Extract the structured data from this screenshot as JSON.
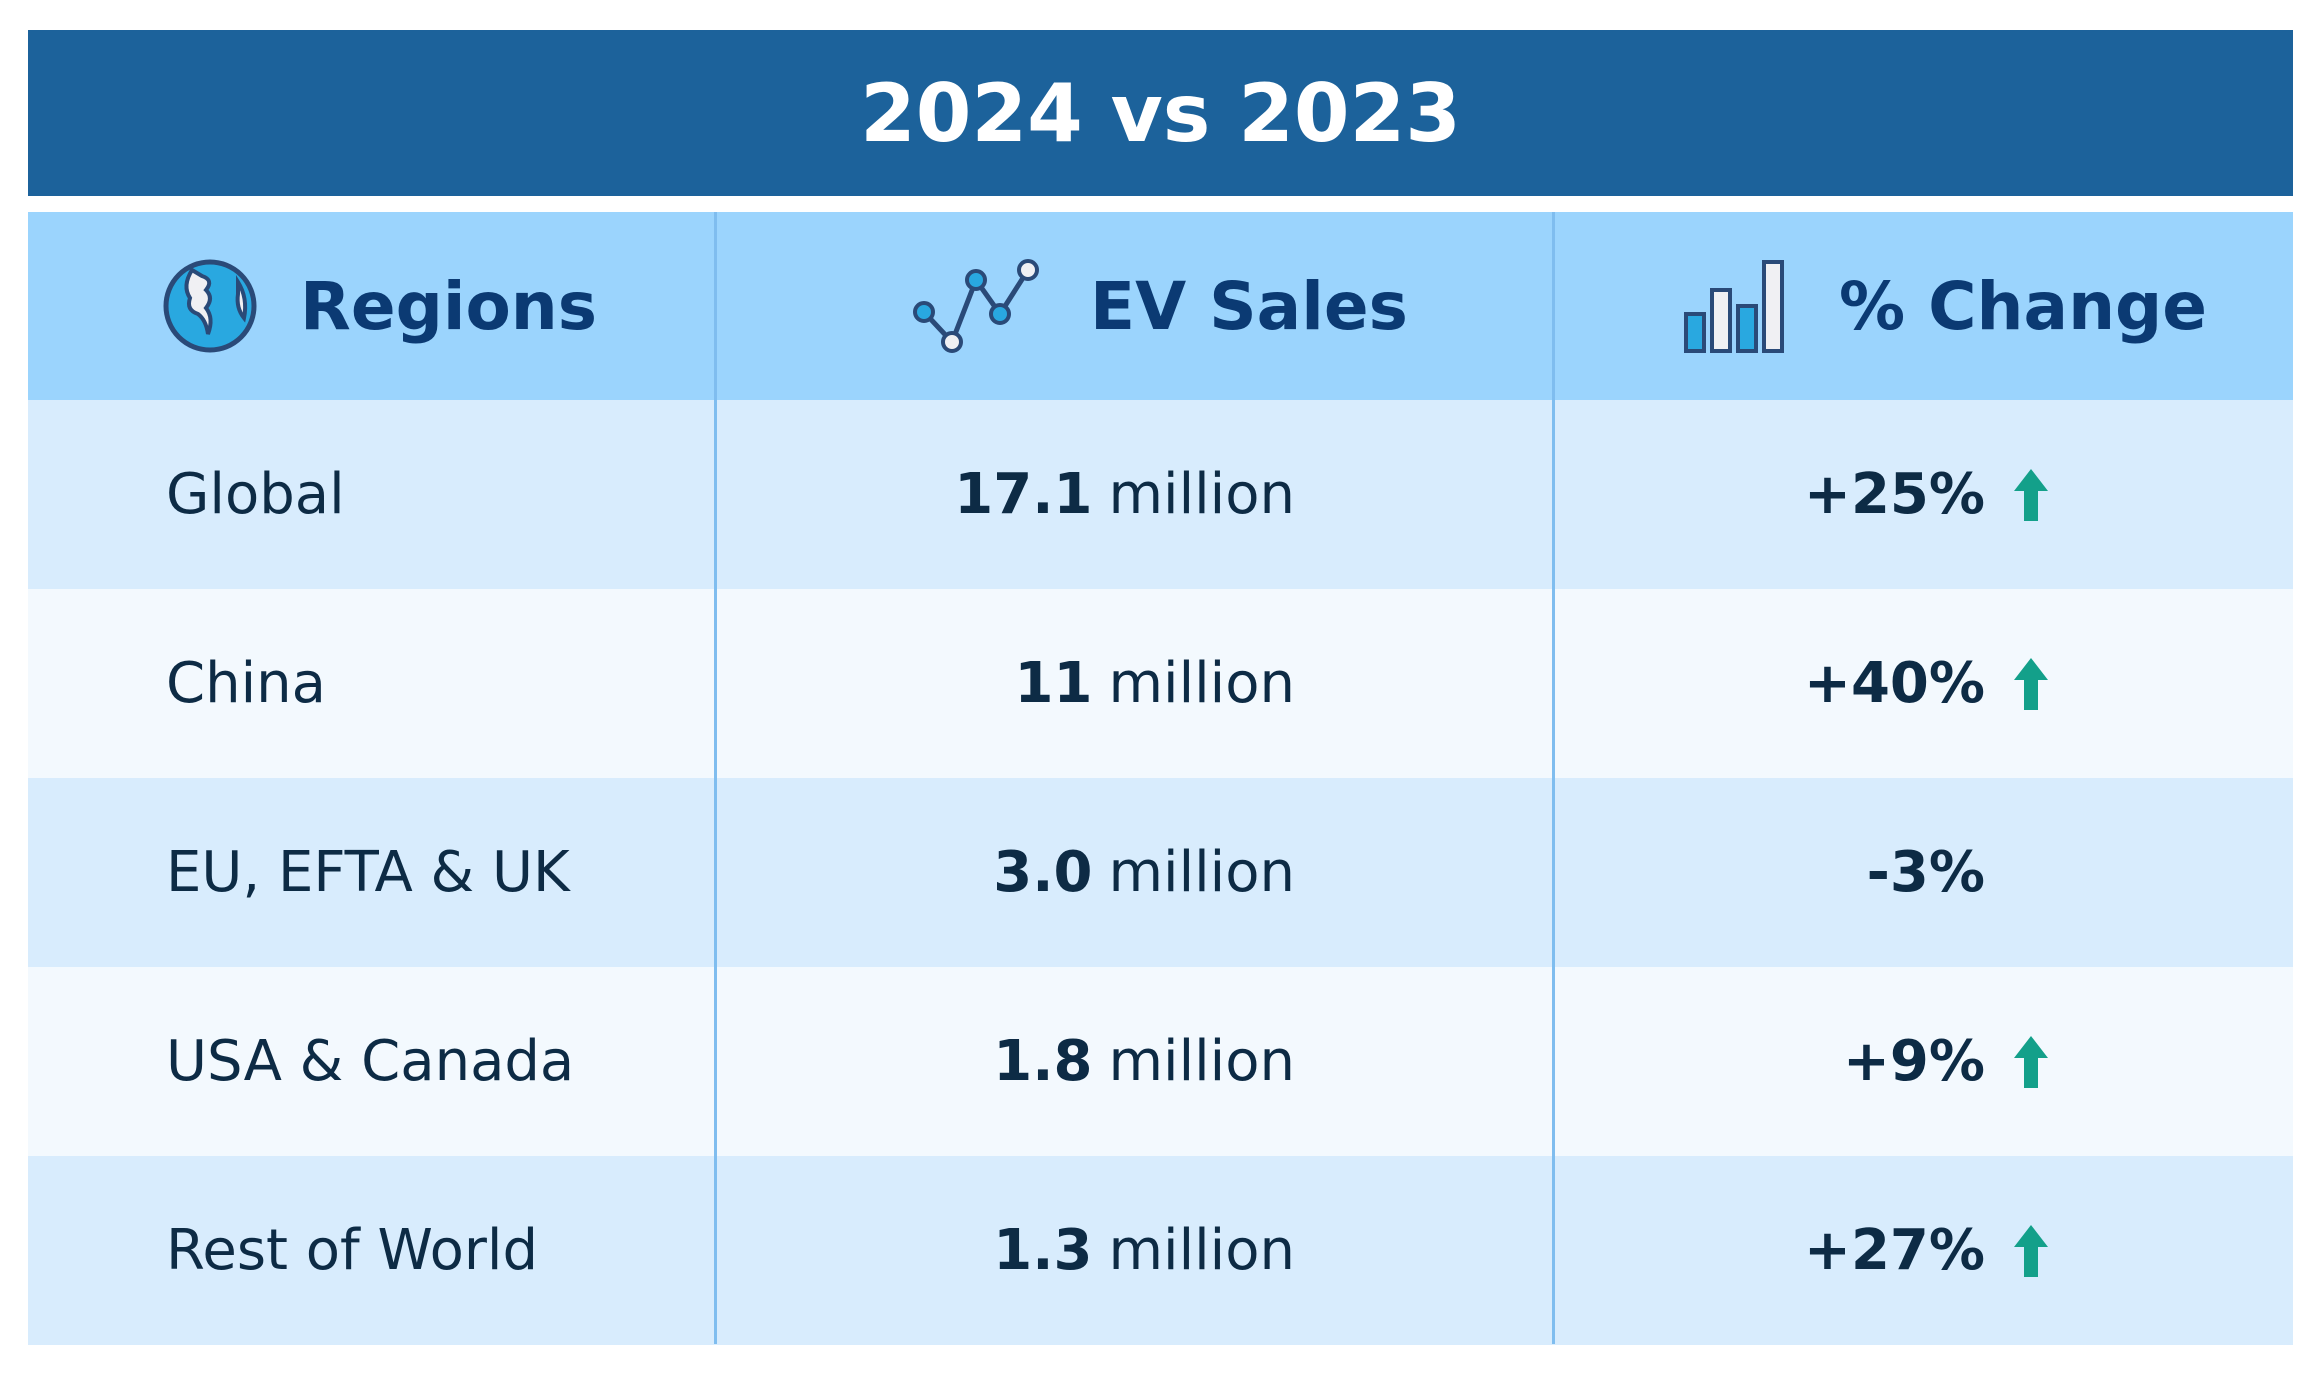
{
  "title": "2024 vs 2023",
  "headers": {
    "regions": {
      "label": "Regions",
      "icon": "globe-icon"
    },
    "sales": {
      "label": "EV Sales",
      "icon": "line-chart-icon"
    },
    "change": {
      "label": "% Change",
      "icon": "bar-chart-icon"
    }
  },
  "rows": [
    {
      "region": "Global",
      "sales_value": "17.1",
      "sales_unit": "million",
      "change": "+25%",
      "trend": "up"
    },
    {
      "region": "China",
      "sales_value": "11",
      "sales_unit": "million",
      "change": "+40%",
      "trend": "up"
    },
    {
      "region": "EU, EFTA & UK",
      "sales_value": "3.0",
      "sales_unit": "million",
      "change": "-3%",
      "trend": "none"
    },
    {
      "region": "USA & Canada",
      "sales_value": "1.8",
      "sales_unit": "million",
      "change": "+9%",
      "trend": "up"
    },
    {
      "region": "Rest of World",
      "sales_value": "1.3",
      "sales_unit": "million",
      "change": "+27%",
      "trend": "up"
    }
  ],
  "colors": {
    "title_bg": "#1c629b",
    "header_bg": "#9bd4fd",
    "row_odd": "#d8ecfd",
    "row_even": "#f3f9fe",
    "up_arrow": "#13a08a"
  }
}
